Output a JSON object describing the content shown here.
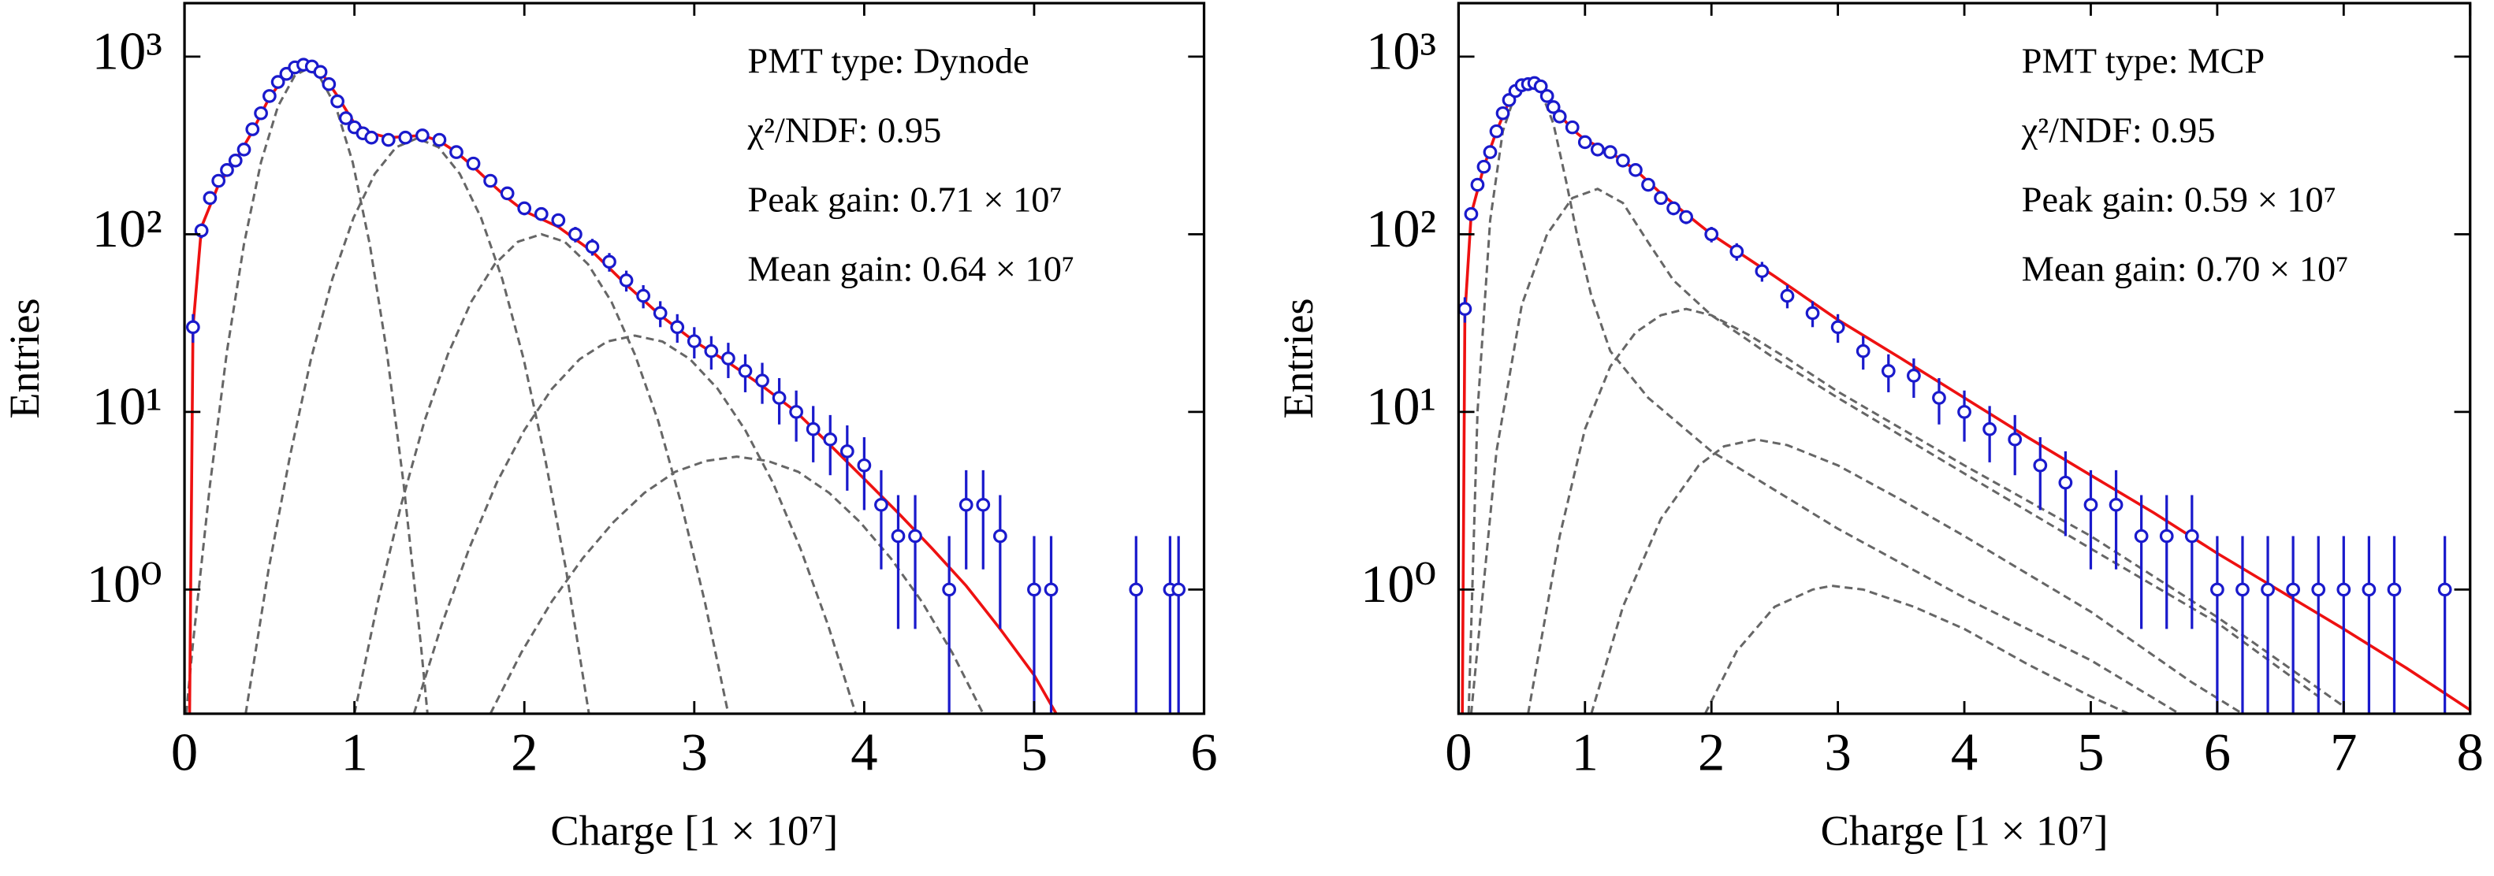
{
  "chart_data": [
    {
      "type": "scatter",
      "xlabel": "Charge [1 × 10⁷]",
      "ylabel": "Entries",
      "log_y": true,
      "xlim": [
        0,
        6
      ],
      "xticks": [
        0,
        1,
        2,
        3,
        4,
        5,
        6
      ],
      "ylim": [
        0.2,
        2000
      ],
      "yticks": [
        {
          "value": 1,
          "label": "10⁰"
        },
        {
          "value": 10,
          "label": "10¹"
        },
        {
          "value": 100,
          "label": "10²"
        },
        {
          "value": 1000,
          "label": "10³"
        }
      ],
      "annotations": [
        "PMT type: Dynode",
        "χ²/NDF: 0.95",
        "Peak gain: 0.71 × 10⁷",
        "Mean gain: 0.64 × 10⁷"
      ],
      "series": [
        {
          "kind": "points",
          "color": "#1a1acc",
          "x": [
            0.05,
            0.1,
            0.15,
            0.2,
            0.25,
            0.3,
            0.35,
            0.4,
            0.45,
            0.5,
            0.55,
            0.6,
            0.65,
            0.7,
            0.75,
            0.8,
            0.85,
            0.9,
            0.95,
            1.0,
            1.05,
            1.1,
            1.2,
            1.3,
            1.4,
            1.5,
            1.6,
            1.7,
            1.8,
            1.9,
            2.0,
            2.1,
            2.2,
            2.3,
            2.4,
            2.5,
            2.6,
            2.7,
            2.8,
            2.9,
            3.0,
            3.1,
            3.2,
            3.3,
            3.4,
            3.5,
            3.6,
            3.7,
            3.8,
            3.9,
            4.0,
            4.1,
            4.2,
            4.3,
            4.5,
            4.6,
            4.7,
            4.8,
            5.0,
            5.1,
            5.6,
            5.8,
            5.85
          ],
          "values": [
            30,
            105,
            160,
            200,
            230,
            260,
            300,
            390,
            480,
            600,
            720,
            800,
            870,
            900,
            880,
            820,
            700,
            560,
            450,
            400,
            370,
            350,
            340,
            350,
            360,
            340,
            290,
            250,
            200,
            170,
            140,
            130,
            120,
            100,
            85,
            70,
            55,
            45,
            36,
            30,
            25,
            22,
            20,
            17,
            15,
            12,
            10,
            8,
            7,
            6,
            5,
            3,
            2,
            2,
            1,
            3,
            3,
            2,
            1,
            1,
            1,
            1,
            1
          ],
          "errors": [
            5.5,
            10,
            13,
            14,
            15,
            16,
            17,
            20,
            22,
            24,
            27,
            28,
            29,
            30,
            30,
            29,
            26,
            24,
            21,
            20,
            19,
            19,
            18,
            19,
            19,
            18,
            17,
            16,
            14,
            13,
            12,
            11,
            11,
            10,
            9.2,
            8.4,
            7.4,
            6.7,
            6,
            5.5,
            5,
            4.7,
            4.5,
            4.1,
            3.9,
            3.5,
            3.2,
            2.8,
            2.6,
            2.4,
            2.2,
            1.7,
            1.4,
            1.4,
            1,
            1.7,
            1.7,
            1.4,
            1,
            1,
            1,
            1,
            1
          ]
        },
        {
          "kind": "line",
          "color": "#ee1111",
          "x": [
            0.03,
            0.05,
            0.1,
            0.2,
            0.3,
            0.4,
            0.5,
            0.6,
            0.7,
            0.8,
            0.9,
            1.0,
            1.1,
            1.2,
            1.3,
            1.4,
            1.5,
            1.6,
            1.7,
            1.8,
            1.9,
            2.0,
            2.2,
            2.4,
            2.6,
            2.8,
            3.0,
            3.2,
            3.4,
            3.6,
            3.8,
            4.0,
            4.2,
            4.4,
            4.6,
            4.8,
            5.0,
            5.13
          ],
          "values": [
            0.2,
            30,
            110,
            190,
            260,
            380,
            590,
            790,
            880,
            830,
            600,
            420,
            370,
            350,
            355,
            360,
            335,
            290,
            240,
            195,
            160,
            135,
            110,
            80,
            52,
            35,
            25,
            19,
            14,
            10,
            6.5,
            4.2,
            2.7,
            1.7,
            1.05,
            0.6,
            0.33,
            0.2
          ]
        },
        {
          "kind": "dashed",
          "color": "#666666",
          "x": [
            0.01,
            0.05,
            0.15,
            0.25,
            0.35,
            0.45,
            0.55,
            0.65,
            0.72,
            0.79,
            0.89,
            0.99,
            1.09,
            1.19,
            1.29,
            1.39,
            1.43
          ],
          "values": [
            0.2,
            0.5,
            3.9,
            22,
            88,
            254,
            525,
            785,
            851,
            785,
            525,
            254,
            88,
            22,
            3.9,
            0.5,
            0.2
          ]
        },
        {
          "kind": "dashed",
          "color": "#666666",
          "x": [
            0.36,
            0.495,
            0.62,
            0.745,
            0.87,
            0.995,
            1.12,
            1.245,
            1.37,
            1.495,
            1.62,
            1.745,
            1.87,
            1.995,
            2.12,
            2.245,
            2.38
          ],
          "values": [
            0.2,
            1.3,
            5.6,
            20,
            56,
            124,
            219,
            309,
            347,
            309,
            219,
            124,
            56,
            20,
            5.6,
            1.3,
            0.2
          ]
        },
        {
          "kind": "dashed",
          "color": "#666666",
          "x": [
            1.0,
            1.1375,
            1.275,
            1.4125,
            1.55,
            1.6875,
            1.825,
            1.9625,
            2.1,
            2.2375,
            2.375,
            2.5125,
            2.65,
            2.7875,
            2.925,
            3.0625,
            3.2
          ],
          "values": [
            0.2,
            0.85,
            3.0,
            8.9,
            21.1,
            41.7,
            67.8,
            90.8,
            100,
            90.8,
            67.8,
            41.7,
            21.1,
            8.9,
            3.0,
            0.85,
            0.2
          ]
        },
        {
          "kind": "dashed",
          "color": "#666666",
          "x": [
            1.35,
            1.5125,
            1.675,
            1.8375,
            2.0,
            2.1625,
            2.325,
            2.4875,
            2.65,
            2.8125,
            2.975,
            3.1375,
            3.3,
            3.4625,
            3.625,
            3.7875,
            3.95
          ],
          "values": [
            0.2,
            0.63,
            1.7,
            4.0,
            7.9,
            13.5,
            19.8,
            24.9,
            26.9,
            24.9,
            19.8,
            13.5,
            7.9,
            4.0,
            1.7,
            0.63,
            0.2
          ]
        },
        {
          "kind": "dashed",
          "color": "#666666",
          "x": [
            1.8,
            1.98125,
            2.1625,
            2.34375,
            2.525,
            2.70625,
            2.8875,
            3.06875,
            3.25,
            3.43125,
            3.6125,
            3.79375,
            3.975,
            4.15625,
            4.3375,
            4.51875,
            4.7
          ],
          "values": [
            0.2,
            0.44,
            0.86,
            1.5,
            2.4,
            3.5,
            4.6,
            5.3,
            5.6,
            5.3,
            4.6,
            3.5,
            2.4,
            1.5,
            0.86,
            0.44,
            0.2
          ]
        }
      ]
    },
    {
      "type": "scatter",
      "xlabel": "Charge [1 × 10⁷]",
      "ylabel": "Entries",
      "log_y": true,
      "xlim": [
        0,
        8
      ],
      "xticks": [
        0,
        1,
        2,
        3,
        4,
        5,
        6,
        7,
        8
      ],
      "ylim": [
        0.2,
        2000
      ],
      "yticks": [
        {
          "value": 1,
          "label": "10⁰"
        },
        {
          "value": 10,
          "label": "10¹"
        },
        {
          "value": 100,
          "label": "10²"
        },
        {
          "value": 1000,
          "label": "10³"
        }
      ],
      "annotations": [
        "PMT type: MCP",
        "χ²/NDF: 0.95",
        "Peak gain: 0.59 × 10⁷",
        "Mean gain: 0.70 × 10⁷"
      ],
      "series": [
        {
          "kind": "points",
          "color": "#1a1acc",
          "x": [
            0.05,
            0.1,
            0.15,
            0.2,
            0.25,
            0.3,
            0.35,
            0.4,
            0.45,
            0.5,
            0.55,
            0.6,
            0.65,
            0.7,
            0.75,
            0.8,
            0.9,
            1.0,
            1.1,
            1.2,
            1.3,
            1.4,
            1.5,
            1.6,
            1.7,
            1.8,
            2.0,
            2.2,
            2.4,
            2.6,
            2.8,
            3.0,
            3.2,
            3.4,
            3.6,
            3.8,
            4.0,
            4.2,
            4.4,
            4.6,
            4.8,
            5.0,
            5.2,
            5.4,
            5.6,
            5.8,
            6.0,
            6.2,
            6.4,
            6.6,
            6.8,
            7.0,
            7.2,
            7.4,
            7.8
          ],
          "values": [
            38,
            130,
            190,
            240,
            290,
            380,
            480,
            570,
            640,
            690,
            700,
            710,
            680,
            600,
            520,
            460,
            400,
            330,
            300,
            290,
            260,
            230,
            190,
            160,
            140,
            125,
            100,
            80,
            62,
            45,
            36,
            30,
            22,
            17,
            16,
            12,
            10,
            8,
            7,
            5,
            4,
            3,
            3,
            2,
            2,
            2,
            1,
            1,
            1,
            1,
            1,
            1,
            1,
            1,
            1
          ],
          "errors": [
            6.2,
            11,
            14,
            15,
            17,
            19,
            22,
            24,
            25,
            26,
            26,
            27,
            26,
            24,
            23,
            21,
            20,
            18,
            17,
            17,
            16,
            15,
            14,
            13,
            12,
            11,
            10,
            9,
            7.9,
            6.7,
            6,
            5.5,
            4.7,
            4.1,
            4,
            3.5,
            3.2,
            2.8,
            2.6,
            2.2,
            2,
            1.7,
            1.7,
            1.4,
            1.4,
            1.4,
            1,
            1,
            1,
            1,
            1,
            1,
            1,
            1,
            1
          ]
        },
        {
          "kind": "line",
          "color": "#ee1111",
          "x": [
            0.03,
            0.05,
            0.1,
            0.2,
            0.3,
            0.4,
            0.5,
            0.6,
            0.7,
            0.8,
            0.9,
            1.0,
            1.2,
            1.4,
            1.6,
            1.8,
            2.0,
            2.5,
            3.0,
            3.5,
            4.0,
            4.5,
            5.0,
            5.5,
            6.0,
            6.5,
            7.0,
            7.5,
            8.0
          ],
          "values": [
            0.2,
            35,
            130,
            240,
            380,
            560,
            690,
            720,
            600,
            470,
            390,
            340,
            290,
            230,
            170,
            130,
            100,
            58,
            33,
            20,
            12,
            7.2,
            4.4,
            2.7,
            1.6,
            0.98,
            0.6,
            0.36,
            0.21
          ]
        },
        {
          "kind": "dashed",
          "color": "#666666",
          "x": [
            0.08,
            0.15,
            0.25,
            0.35,
            0.45,
            0.55,
            0.65,
            0.75,
            0.85,
            0.95,
            1.05,
            1.2,
            1.5,
            2,
            3,
            4,
            5,
            5.7
          ],
          "values": [
            0.2,
            10,
            120,
            380,
            620,
            710,
            640,
            420,
            200,
            90,
            45,
            22,
            12,
            6,
            2.2,
            0.9,
            0.4,
            0.2
          ]
        },
        {
          "kind": "dashed",
          "color": "#666666",
          "x": [
            0.1,
            0.3,
            0.5,
            0.7,
            0.9,
            1.1,
            1.3,
            1.5,
            1.7,
            2.0,
            2.5,
            3,
            4,
            5,
            6,
            6.8
          ],
          "values": [
            0.2,
            6,
            40,
            100,
            160,
            180,
            150,
            90,
            55,
            35,
            20,
            12,
            4.5,
            1.7,
            0.65,
            0.25
          ]
        },
        {
          "kind": "dashed",
          "color": "#666666",
          "x": [
            0.55,
            0.8,
            1.0,
            1.2,
            1.4,
            1.6,
            1.8,
            2.0,
            2.3,
            2.6,
            3,
            4,
            5,
            6,
            7.0
          ],
          "values": [
            0.2,
            2,
            8,
            18,
            28,
            35,
            38,
            35,
            27,
            20,
            13,
            5,
            2,
            0.7,
            0.22
          ]
        },
        {
          "kind": "dashed",
          "color": "#666666",
          "x": [
            1.05,
            1.3,
            1.6,
            1.9,
            2.1,
            2.35,
            2.6,
            3,
            3.5,
            4,
            5,
            5.8,
            6.2
          ],
          "values": [
            0.2,
            0.8,
            2.5,
            5,
            6.4,
            7,
            6.5,
            5,
            3.2,
            2,
            0.75,
            0.3,
            0.2
          ]
        },
        {
          "kind": "dashed",
          "color": "#666666",
          "x": [
            1.95,
            2.2,
            2.5,
            2.8,
            2.95,
            3.2,
            3.6,
            4,
            4.5,
            5,
            5.3
          ],
          "values": [
            0.2,
            0.45,
            0.8,
            1.0,
            1.05,
            1.0,
            0.8,
            0.6,
            0.38,
            0.25,
            0.2
          ]
        }
      ]
    }
  ]
}
